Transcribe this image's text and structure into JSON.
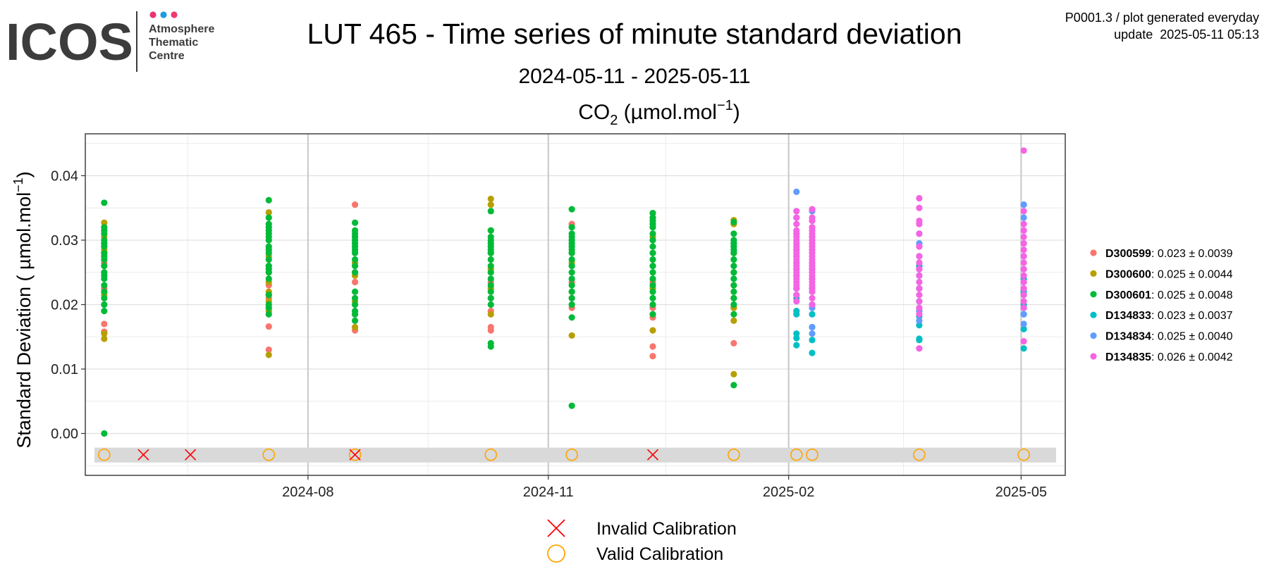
{
  "header": {
    "logo_word": "ICOS",
    "logo_line1": "Atmosphere",
    "logo_line2": "Thematic",
    "logo_line3": "Centre",
    "logo_dot_colors": [
      "#e8336e",
      "#1f9be0",
      "#ef3a6f"
    ],
    "info_line1": "P0001.3 / plot generated everyday",
    "info_line2": "update  2025-05-11 05:13"
  },
  "chart_data": {
    "type": "scatter",
    "title": "LUT 465 - Time series of minute standard deviation",
    "subtitle": "2024-05-11 - 2025-05-11",
    "gas_main": "CO",
    "gas_sub": "2",
    "gas_unit": "(µmol.mol",
    "gas_unit_exp": "−1",
    "gas_unit_close": ")",
    "ylabel_main": "Standard Deviation ( µmol.mol",
    "ylabel_exp": "−1",
    "ylabel_close": ")",
    "xlim": [
      "2024-05-11",
      "2025-05-11"
    ],
    "ylim": [
      -0.0065,
      0.0465
    ],
    "xticks": [
      {
        "date": "2024-08-01",
        "label": "2024-08"
      },
      {
        "date": "2024-11-01",
        "label": "2024-11"
      },
      {
        "date": "2025-02-01",
        "label": "2025-02"
      },
      {
        "date": "2025-05-01",
        "label": "2025-05"
      }
    ],
    "yticks": [
      {
        "value": 0.0,
        "label": "0.00"
      },
      {
        "value": 0.01,
        "label": "0.01"
      },
      {
        "value": 0.02,
        "label": "0.02"
      },
      {
        "value": 0.03,
        "label": "0.03"
      },
      {
        "value": 0.04,
        "label": "0.04"
      }
    ],
    "grid": true,
    "legend_position": "right",
    "series": [
      {
        "name": "D300599",
        "stat": ": 0.023 ± 0.0039",
        "color": "#f8766d",
        "points": [
          [
            "2024-05-15",
            [
              0.017,
              0.0158,
              0.0225,
              0.0265,
              0.028
            ]
          ],
          [
            "2024-07-17",
            [
              0.013,
              0.0166,
              0.021,
              0.023,
              0.026
            ]
          ],
          [
            "2024-08-19",
            [
              0.0355,
              0.016,
              0.0185,
              0.0235,
              0.025
            ]
          ],
          [
            "2024-10-10",
            [
              0.016,
              0.0165,
              0.021,
              0.0235,
              0.019
            ]
          ],
          [
            "2024-11-10",
            [
              0.0325,
              0.0195,
              0.021,
              0.0235
            ]
          ],
          [
            "2024-12-11",
            [
              0.0135,
              0.012,
              0.018,
              0.0195,
              0.0235
            ]
          ],
          [
            "2025-01-11",
            [
              0.014,
              0.0195,
              0.023,
              0.028
            ]
          ]
        ]
      },
      {
        "name": "D300600",
        "stat": ": 0.025 ± 0.0044",
        "color": "#b79f00",
        "points": [
          [
            "2024-05-15",
            [
              0.0327,
              0.0155,
              0.0147,
              0.0285,
              0.025,
              0.0215,
              0.0305
            ]
          ],
          [
            "2024-07-17",
            [
              0.0343,
              0.0122,
              0.019,
              0.0205,
              0.0215,
              0.022,
              0.0235,
              0.025,
              0.0275
            ]
          ],
          [
            "2024-08-19",
            [
              0.0305,
              0.0165,
              0.0205,
              0.0245,
              0.0265
            ]
          ],
          [
            "2024-10-10",
            [
              0.0364,
              0.0355,
              0.0315,
              0.028,
              0.0185,
              0.0225,
              0.0255
            ]
          ],
          [
            "2024-11-10",
            [
              0.0152,
              0.022,
              0.0265,
              0.028,
              0.03
            ]
          ],
          [
            "2024-12-11",
            [
              0.0335,
              0.016,
              0.0305,
              0.0225,
              0.026,
              0.028
            ]
          ],
          [
            "2025-01-11",
            [
              0.0331,
              0.0325,
              0.0092,
              0.0175,
              0.021,
              0.025,
              0.028,
              0.0195
            ]
          ]
        ]
      },
      {
        "name": "D300601",
        "stat": ": 0.025 ± 0.0048",
        "color": "#00ba38",
        "points": [
          [
            "2024-05-15",
            [
              0.0358,
              0.032,
              0.031,
              0.0295,
              0.029,
              0.028,
              0.0275,
              0.027,
              0.026,
              0.025,
              0.0245,
              0.024,
              0.023,
              0.022,
              0.021,
              0.02,
              0.019,
              0.0,
              0.0315,
              0.03
            ]
          ],
          [
            "2024-07-17",
            [
              0.0362,
              0.0335,
              0.032,
              0.031,
              0.0305,
              0.03,
              0.029,
              0.0285,
              0.028,
              0.027,
              0.026,
              0.0255,
              0.025,
              0.024,
              0.0185,
              0.02,
              0.0195,
              0.0215,
              0.0315,
              0.0325
            ]
          ],
          [
            "2024-08-19",
            [
              0.0327,
              0.0315,
              0.031,
              0.03,
              0.029,
              0.0285,
              0.028,
              0.027,
              0.026,
              0.025,
              0.022,
              0.021,
              0.02,
              0.019,
              0.0185,
              0.0175,
              0.0295,
              0.0305
            ]
          ],
          [
            "2024-10-10",
            [
              0.0345,
              0.0315,
              0.03,
              0.0295,
              0.029,
              0.0285,
              0.028,
              0.027,
              0.026,
              0.025,
              0.024,
              0.023,
              0.022,
              0.021,
              0.02,
              0.0135,
              0.014,
              0.0305
            ]
          ],
          [
            "2024-11-10",
            [
              0.0348,
              0.032,
              0.031,
              0.0305,
              0.03,
              0.0295,
              0.029,
              0.0285,
              0.028,
              0.027,
              0.026,
              0.025,
              0.024,
              0.023,
              0.022,
              0.021,
              0.02,
              0.018,
              0.0043
            ]
          ],
          [
            "2024-12-11",
            [
              0.0342,
              0.033,
              0.032,
              0.031,
              0.03,
              0.029,
              0.028,
              0.027,
              0.026,
              0.025,
              0.024,
              0.023,
              0.022,
              0.021,
              0.02,
              0.0185,
              0.0335,
              0.0325
            ]
          ],
          [
            "2025-01-11",
            [
              0.0328,
              0.031,
              0.03,
              0.029,
              0.028,
              0.027,
              0.026,
              0.025,
              0.024,
              0.023,
              0.022,
              0.021,
              0.02,
              0.0185,
              0.0075,
              0.0295,
              0.0285
            ]
          ]
        ]
      },
      {
        "name": "D134833",
        "stat": ": 0.023 ± 0.0037",
        "color": "#00bfc4",
        "points": [
          [
            "2025-02-04",
            [
              0.0185,
              0.0155,
              0.0148,
              0.0137,
              0.019,
              0.021,
              0.0225,
              0.0245,
              0.0265,
              0.0285
            ]
          ],
          [
            "2025-02-10",
            [
              0.0125,
              0.0145,
              0.0165,
              0.0185,
              0.02,
              0.022,
              0.024,
              0.0255
            ]
          ],
          [
            "2025-03-23",
            [
              0.0147,
              0.0145,
              0.0168,
              0.0182,
              0.0205,
              0.0225,
              0.0245,
              0.026
            ]
          ],
          [
            "2025-05-02",
            [
              0.0132,
              0.0162,
              0.0185,
              0.02,
              0.022,
              0.024
            ]
          ]
        ]
      },
      {
        "name": "D134834",
        "stat": ": 0.025 ± 0.0040",
        "color": "#619cff",
        "points": [
          [
            "2025-02-04",
            [
              0.0375,
              0.0335,
              0.031,
              0.0255,
              0.0215,
              0.0275
            ]
          ],
          [
            "2025-02-10",
            [
              0.0345,
              0.0305,
              0.0285,
              0.0265,
              0.0225,
              0.0195,
              0.0165,
              0.0155
            ]
          ],
          [
            "2025-03-23",
            [
              0.031,
              0.0295,
              0.0275,
              0.0255,
              0.0225,
              0.0205,
              0.0175,
              0.019
            ]
          ],
          [
            "2025-05-02",
            [
              0.0355,
              0.0335,
              0.0315,
              0.0295,
              0.0275,
              0.0255,
              0.0235,
              0.0215,
              0.0195,
              0.0185,
              0.017,
              0.0355
            ]
          ]
        ]
      },
      {
        "name": "D134835",
        "stat": ": 0.026 ± 0.0042",
        "color": "#f564e3",
        "points": [
          [
            "2025-02-04",
            [
              0.0345,
              0.0335,
              0.0325,
              0.0315,
              0.031,
              0.0305,
              0.03,
              0.0295,
              0.029,
              0.0285,
              0.028,
              0.0275,
              0.027,
              0.0265,
              0.026,
              0.0255,
              0.025,
              0.0245,
              0.024,
              0.0235,
              0.023,
              0.0225,
              0.0215,
              0.0205
            ]
          ],
          [
            "2025-02-10",
            [
              0.0348,
              0.0335,
              0.033,
              0.032,
              0.0315,
              0.031,
              0.0305,
              0.03,
              0.0295,
              0.029,
              0.0285,
              0.028,
              0.0275,
              0.027,
              0.0265,
              0.026,
              0.0255,
              0.025,
              0.0245,
              0.024,
              0.0235,
              0.023,
              0.0225,
              0.022,
              0.021,
              0.02
            ]
          ],
          [
            "2025-03-23",
            [
              0.0365,
              0.035,
              0.033,
              0.0325,
              0.031,
              0.029,
              0.0275,
              0.0265,
              0.0255,
              0.0245,
              0.0235,
              0.0225,
              0.0215,
              0.0205,
              0.0195,
              0.0185,
              0.0132
            ]
          ],
          [
            "2025-05-02",
            [
              0.0439,
              0.0345,
              0.0325,
              0.0315,
              0.0305,
              0.0295,
              0.0285,
              0.0275,
              0.0265,
              0.0255,
              0.0245,
              0.0235,
              0.0225,
              0.0215,
              0.0205,
              0.0143,
              0.0195
            ]
          ]
        ]
      }
    ],
    "calibration_band": {
      "ymin": -0.0045,
      "ymax": -0.0022,
      "color": "#d9d9d9"
    },
    "calibration_valid": [
      "2024-05-15",
      "2024-07-17",
      "2024-08-19",
      "2024-10-10",
      "2024-11-10",
      "2025-01-11",
      "2025-02-04",
      "2025-02-10",
      "2025-03-23",
      "2025-05-02"
    ],
    "calibration_invalid": [
      "2024-05-30",
      "2024-06-17",
      "2024-08-19",
      "2024-12-11"
    ],
    "calibration_y": -0.0033,
    "calibration_legend": [
      {
        "label": "Invalid Calibration",
        "symbol": "cross",
        "color": "#ff0000"
      },
      {
        "label": "Valid Calibration",
        "symbol": "circle",
        "color": "#ffa500"
      }
    ]
  }
}
